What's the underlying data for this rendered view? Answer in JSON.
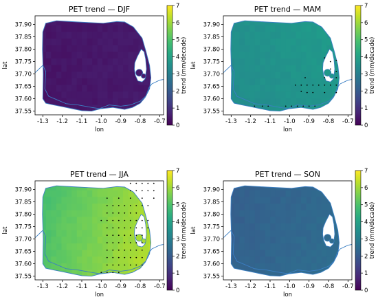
{
  "chart_data": [
    {
      "type": "heatmap",
      "title": "PET trend — DJF",
      "xlabel": "lon",
      "ylabel": "lat",
      "colorbar_label": "trend (mm/decade)",
      "colorbar_ticks": [
        "0",
        "1",
        "2",
        "3",
        "4",
        "5",
        "6",
        "7"
      ],
      "xlim": [
        -1.34,
        -0.68
      ],
      "ylim": [
        37.535,
        37.935
      ],
      "x_ticks": [
        "-1.3",
        "-1.2",
        "-1.1",
        "-1.0",
        "-0.9",
        "-0.8",
        "-0.7"
      ],
      "y_ticks": [
        "37.55",
        "37.60",
        "37.65",
        "37.70",
        "37.75",
        "37.80",
        "37.85",
        "37.90"
      ],
      "colormap": "viridis",
      "vmin": 0,
      "vmax": 7,
      "trend_base": 0.45,
      "trend_gradient": {
        "east": 0.1,
        "north": 0.0
      },
      "significant_points": []
    },
    {
      "type": "heatmap",
      "title": "PET trend — MAM",
      "xlabel": "lon",
      "ylabel": "lat",
      "colorbar_label": "trend (mm/decade)",
      "colorbar_ticks": [
        "0",
        "1",
        "2",
        "3",
        "4",
        "5",
        "6",
        "7"
      ],
      "xlim": [
        -1.34,
        -0.68
      ],
      "ylim": [
        37.535,
        37.935
      ],
      "x_ticks": [
        "-1.3",
        "-1.2",
        "-1.1",
        "-1.0",
        "-0.9",
        "-0.8",
        "-0.7"
      ],
      "y_ticks": [
        "37.55",
        "37.60",
        "37.65",
        "37.70",
        "37.75",
        "37.80",
        "37.85",
        "37.90"
      ],
      "colormap": "viridis",
      "vmin": 0,
      "vmax": 7,
      "trend_base": 3.6,
      "trend_gradient": {
        "east": 0.3,
        "north": 0.1
      },
      "significant_points": [
        [
          -0.82,
          37.765
        ],
        [
          -0.79,
          37.75
        ],
        [
          -0.76,
          37.755
        ],
        [
          -0.79,
          37.72
        ],
        [
          -0.76,
          37.71
        ],
        [
          -0.92,
          37.685
        ],
        [
          -0.82,
          37.685
        ],
        [
          -0.76,
          37.685
        ],
        [
          -0.97,
          37.655
        ],
        [
          -0.94,
          37.655
        ],
        [
          -0.91,
          37.655
        ],
        [
          -0.88,
          37.655
        ],
        [
          -0.85,
          37.655
        ],
        [
          -0.82,
          37.655
        ],
        [
          -0.79,
          37.655
        ],
        [
          -0.76,
          37.655
        ],
        [
          -0.94,
          37.63
        ],
        [
          -0.91,
          37.625
        ],
        [
          -0.88,
          37.625
        ],
        [
          -0.82,
          37.625
        ],
        [
          -0.76,
          37.625
        ],
        [
          -1.18,
          37.57
        ],
        [
          -1.14,
          37.57
        ],
        [
          -1.11,
          37.57
        ],
        [
          -1.02,
          37.57
        ],
        [
          -0.99,
          37.57
        ],
        [
          -0.96,
          37.57
        ],
        [
          -0.93,
          37.57
        ],
        [
          -0.9,
          37.57
        ],
        [
          -0.87,
          37.57
        ]
      ]
    },
    {
      "type": "heatmap",
      "title": "PET trend — JJA",
      "xlabel": "lon",
      "ylabel": "lat",
      "colorbar_label": "trend (mm/decade)",
      "colorbar_ticks": [
        "0",
        "1",
        "2",
        "3",
        "4",
        "5",
        "6",
        "7"
      ],
      "xlim": [
        -1.34,
        -0.68
      ],
      "ylim": [
        37.535,
        37.935
      ],
      "x_ticks": [
        "-1.3",
        "-1.2",
        "-1.1",
        "-1.0",
        "-0.9",
        "-0.8",
        "-0.7"
      ],
      "y_ticks": [
        "37.55",
        "37.60",
        "37.65",
        "37.70",
        "37.75",
        "37.80",
        "37.85",
        "37.90"
      ],
      "colormap": "viridis",
      "vmin": 0,
      "vmax": 7,
      "trend_base": 5.6,
      "trend_gradient": {
        "east": 1.2,
        "north": -0.2
      },
      "significant_points": [
        [
          -0.85,
          37.925
        ],
        [
          -0.82,
          37.925
        ],
        [
          -0.79,
          37.925
        ],
        [
          -0.76,
          37.925
        ],
        [
          -0.73,
          37.925
        ],
        [
          -0.85,
          37.895
        ],
        [
          -0.82,
          37.895
        ],
        [
          -0.79,
          37.895
        ],
        [
          -0.76,
          37.895
        ],
        [
          -0.73,
          37.895
        ],
        [
          -0.97,
          37.865
        ],
        [
          -0.91,
          37.865
        ],
        [
          -0.85,
          37.865
        ],
        [
          -0.79,
          37.865
        ],
        [
          -0.73,
          37.865
        ],
        [
          -0.97,
          37.835
        ],
        [
          -0.94,
          37.835
        ],
        [
          -0.91,
          37.835
        ],
        [
          -0.88,
          37.835
        ],
        [
          -0.85,
          37.835
        ],
        [
          -0.82,
          37.835
        ],
        [
          -0.79,
          37.835
        ],
        [
          -0.76,
          37.835
        ],
        [
          -0.97,
          37.805
        ],
        [
          -0.94,
          37.805
        ],
        [
          -0.91,
          37.805
        ],
        [
          -0.88,
          37.805
        ],
        [
          -0.85,
          37.805
        ],
        [
          -0.82,
          37.805
        ],
        [
          -1.0,
          37.775
        ],
        [
          -0.97,
          37.775
        ],
        [
          -0.94,
          37.775
        ],
        [
          -0.91,
          37.775
        ],
        [
          -0.88,
          37.775
        ],
        [
          -0.85,
          37.775
        ],
        [
          -0.82,
          37.775
        ],
        [
          -0.79,
          37.775
        ],
        [
          -0.76,
          37.775
        ],
        [
          -0.97,
          37.745
        ],
        [
          -0.94,
          37.745
        ],
        [
          -0.91,
          37.745
        ],
        [
          -0.88,
          37.745
        ],
        [
          -0.85,
          37.745
        ],
        [
          -0.82,
          37.745
        ],
        [
          -0.79,
          37.745
        ],
        [
          -0.76,
          37.745
        ],
        [
          -0.97,
          37.715
        ],
        [
          -0.94,
          37.715
        ],
        [
          -0.91,
          37.715
        ],
        [
          -0.88,
          37.715
        ],
        [
          -0.85,
          37.715
        ],
        [
          -0.82,
          37.715
        ],
        [
          -0.79,
          37.715
        ],
        [
          -0.97,
          37.685
        ],
        [
          -0.94,
          37.685
        ],
        [
          -0.91,
          37.685
        ],
        [
          -0.88,
          37.685
        ],
        [
          -0.85,
          37.685
        ],
        [
          -0.82,
          37.685
        ],
        [
          -0.79,
          37.685
        ],
        [
          -0.97,
          37.655
        ],
        [
          -0.94,
          37.655
        ],
        [
          -0.91,
          37.655
        ],
        [
          -0.88,
          37.655
        ],
        [
          -0.85,
          37.655
        ],
        [
          -0.82,
          37.655
        ],
        [
          -0.79,
          37.655
        ],
        [
          -0.97,
          37.625
        ],
        [
          -0.94,
          37.625
        ],
        [
          -0.91,
          37.625
        ],
        [
          -0.88,
          37.625
        ],
        [
          -0.85,
          37.625
        ],
        [
          -0.82,
          37.625
        ],
        [
          -0.79,
          37.625
        ],
        [
          -0.97,
          37.595
        ],
        [
          -0.94,
          37.595
        ],
        [
          -0.91,
          37.595
        ],
        [
          -0.88,
          37.595
        ],
        [
          -0.85,
          37.595
        ],
        [
          -0.82,
          37.595
        ],
        [
          -0.79,
          37.595
        ],
        [
          -1.0,
          37.565
        ],
        [
          -0.97,
          37.565
        ],
        [
          -0.94,
          37.565
        ],
        [
          -0.91,
          37.565
        ]
      ]
    },
    {
      "type": "heatmap",
      "title": "PET trend — SON",
      "xlabel": "lon",
      "ylabel": "lat",
      "colorbar_label": "trend (mm/decade)",
      "colorbar_ticks": [
        "0",
        "1",
        "2",
        "3",
        "4",
        "5",
        "6",
        "7"
      ],
      "xlim": [
        -1.34,
        -0.68
      ],
      "ylim": [
        37.535,
        37.935
      ],
      "x_ticks": [
        "-1.3",
        "-1.2",
        "-1.1",
        "-1.0",
        "-0.9",
        "-0.8",
        "-0.7"
      ],
      "y_ticks": [
        "37.55",
        "37.60",
        "37.65",
        "37.70",
        "37.75",
        "37.80",
        "37.85",
        "37.90"
      ],
      "colormap": "viridis",
      "vmin": 0,
      "vmax": 7,
      "trend_base": 2.3,
      "trend_gradient": {
        "east": 0.3,
        "north": -0.1
      },
      "significant_points": []
    }
  ]
}
